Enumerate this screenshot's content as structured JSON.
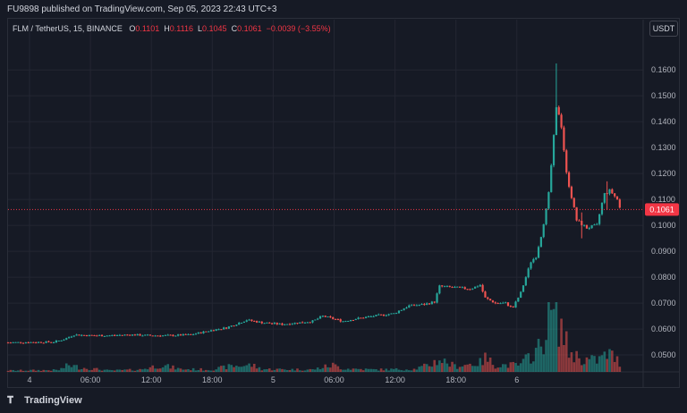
{
  "header": {
    "published": "FU9898 published on TradingView.com, Sep 05, 2023 22:43 UTC+3"
  },
  "legend": {
    "symbol": "FLM / TetherUS, 15, BINANCE",
    "o_label": "O",
    "o_value": "0.1101",
    "h_label": "H",
    "h_value": "0.1116",
    "l_label": "L",
    "l_value": "0.1045",
    "c_label": "C",
    "c_value": "0.1061",
    "change": "−0.0039 (−3.55%)"
  },
  "currency_button": "USDT",
  "footer": {
    "brand": "TradingView"
  },
  "colors": {
    "up": "#26a69a",
    "down": "#ef5350",
    "background": "#161a25",
    "grid": "#232632",
    "text": "#b2b5be",
    "last_price_badge": "#f23645"
  },
  "chart_data": {
    "type": "candlestick",
    "symbol": "FLM / TetherUS",
    "interval": "15",
    "exchange": "BINANCE",
    "ylim": [
      0.0445,
      0.168
    ],
    "y_ticks": [
      "0.0500",
      "0.0600",
      "0.0700",
      "0.0800",
      "0.0900",
      "0.1000",
      "0.1100",
      "0.1200",
      "0.1300",
      "0.1400",
      "0.1500",
      "0.1600"
    ],
    "x_ticks": [
      "4",
      "06:00",
      "12:00",
      "18:00",
      "5",
      "06:00",
      "12:00",
      "18:00",
      "6"
    ],
    "last_price": "0.1061",
    "price_path": [
      {
        "t": 0,
        "p": 0.0548
      },
      {
        "t": 4.5,
        "p": 0.055
      },
      {
        "t": 5.5,
        "p": 0.056
      },
      {
        "t": 6.5,
        "p": 0.0578
      },
      {
        "t": 8,
        "p": 0.0575
      },
      {
        "t": 10,
        "p": 0.0575
      },
      {
        "t": 12,
        "p": 0.0578
      },
      {
        "t": 14,
        "p": 0.0575
      },
      {
        "t": 16,
        "p": 0.0575
      },
      {
        "t": 18,
        "p": 0.0578
      },
      {
        "t": 20,
        "p": 0.0595
      },
      {
        "t": 21.5,
        "p": 0.0605
      },
      {
        "t": 23.5,
        "p": 0.0635
      },
      {
        "t": 25,
        "p": 0.0625
      },
      {
        "t": 27,
        "p": 0.0618
      },
      {
        "t": 30,
        "p": 0.063
      },
      {
        "t": 31,
        "p": 0.065
      },
      {
        "t": 33,
        "p": 0.063
      },
      {
        "t": 34,
        "p": 0.0638
      },
      {
        "t": 36,
        "p": 0.065
      },
      {
        "t": 38,
        "p": 0.066
      },
      {
        "t": 39.5,
        "p": 0.069
      },
      {
        "t": 41,
        "p": 0.0695
      },
      {
        "t": 42,
        "p": 0.0705
      },
      {
        "t": 42.5,
        "p": 0.0765
      },
      {
        "t": 44,
        "p": 0.076
      },
      {
        "t": 45.5,
        "p": 0.0755
      },
      {
        "t": 46.5,
        "p": 0.077
      },
      {
        "t": 47,
        "p": 0.072
      },
      {
        "t": 48,
        "p": 0.07
      },
      {
        "t": 49,
        "p": 0.07
      },
      {
        "t": 49.7,
        "p": 0.068
      },
      {
        "t": 50.5,
        "p": 0.074
      },
      {
        "t": 51.5,
        "p": 0.086
      },
      {
        "t": 52,
        "p": 0.088
      },
      {
        "t": 52.5,
        "p": 0.096
      },
      {
        "t": 53.2,
        "p": 0.11
      },
      {
        "t": 54,
        "p": 0.145
      },
      {
        "t": 54.4,
        "p": 0.142
      },
      {
        "t": 55,
        "p": 0.12
      },
      {
        "t": 56,
        "p": 0.102
      },
      {
        "t": 57,
        "p": 0.099
      },
      {
        "t": 58,
        "p": 0.1
      },
      {
        "t": 58.7,
        "p": 0.112
      },
      {
        "t": 59.3,
        "p": 0.1135
      },
      {
        "t": 60,
        "p": 0.11
      },
      {
        "t": 60.3,
        "p": 0.1061
      }
    ],
    "spikes": [
      {
        "t": 54.0,
        "high": 0.1625,
        "low": 0.14
      },
      {
        "t": 56.5,
        "high": 0.105,
        "low": 0.095
      },
      {
        "t": 59.0,
        "high": 0.117,
        "low": 0.106
      }
    ],
    "volume_profile": [
      {
        "t": 0,
        "v": 0.06
      },
      {
        "t": 5,
        "v": 0.08
      },
      {
        "t": 6,
        "v": 0.3
      },
      {
        "t": 7,
        "v": 0.2
      },
      {
        "t": 10,
        "v": 0.06
      },
      {
        "t": 13,
        "v": 0.1
      },
      {
        "t": 15,
        "v": 0.3
      },
      {
        "t": 17,
        "v": 0.12
      },
      {
        "t": 20,
        "v": 0.1
      },
      {
        "t": 22,
        "v": 0.25
      },
      {
        "t": 24,
        "v": 0.3
      },
      {
        "t": 25,
        "v": 0.12
      },
      {
        "t": 30,
        "v": 0.1
      },
      {
        "t": 32,
        "v": 0.3
      },
      {
        "t": 33,
        "v": 0.15
      },
      {
        "t": 36,
        "v": 0.1
      },
      {
        "t": 40,
        "v": 0.12
      },
      {
        "t": 41.5,
        "v": 0.3
      },
      {
        "t": 42.5,
        "v": 0.55
      },
      {
        "t": 44,
        "v": 0.25
      },
      {
        "t": 46.5,
        "v": 0.4
      },
      {
        "t": 47,
        "v": 0.6
      },
      {
        "t": 48,
        "v": 0.3
      },
      {
        "t": 50.5,
        "v": 0.3
      },
      {
        "t": 51.5,
        "v": 0.75
      },
      {
        "t": 52.5,
        "v": 1.1
      },
      {
        "t": 53.2,
        "v": 2.4
      },
      {
        "t": 54,
        "v": 2.6
      },
      {
        "t": 54.6,
        "v": 1.8
      },
      {
        "t": 55.2,
        "v": 0.9
      },
      {
        "t": 56.5,
        "v": 0.55
      },
      {
        "t": 58,
        "v": 0.5
      },
      {
        "t": 59.2,
        "v": 0.8
      },
      {
        "t": 60.3,
        "v": 0.4
      }
    ],
    "volume_max_scale": 2.6
  }
}
